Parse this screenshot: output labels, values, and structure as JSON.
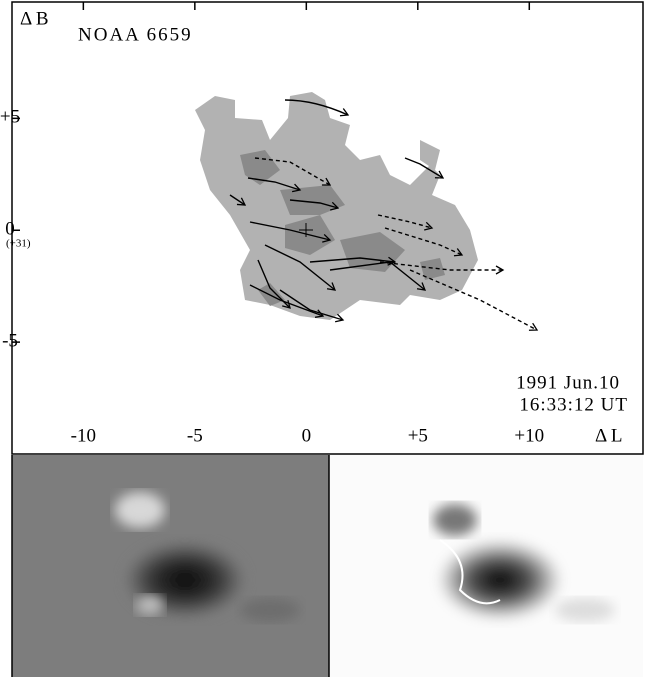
{
  "figure": {
    "title": "NOAA 6659",
    "y_label": "Δ B",
    "x_label": "Δ L",
    "date": "1991 Jun.10",
    "time": "16:33:12 UT",
    "y_zero_note": "(+31)",
    "xlim": [
      -13.2,
      15.1
    ],
    "ylim": [
      -10,
      10.2
    ],
    "xticks": [
      -10,
      -5,
      0,
      {
        "value": 5,
        "label": "+5"
      },
      {
        "value": 10,
        "label": "+10"
      }
    ],
    "yticks": [
      {
        "value": 5,
        "label": "+5"
      },
      0,
      -5
    ]
  }
}
